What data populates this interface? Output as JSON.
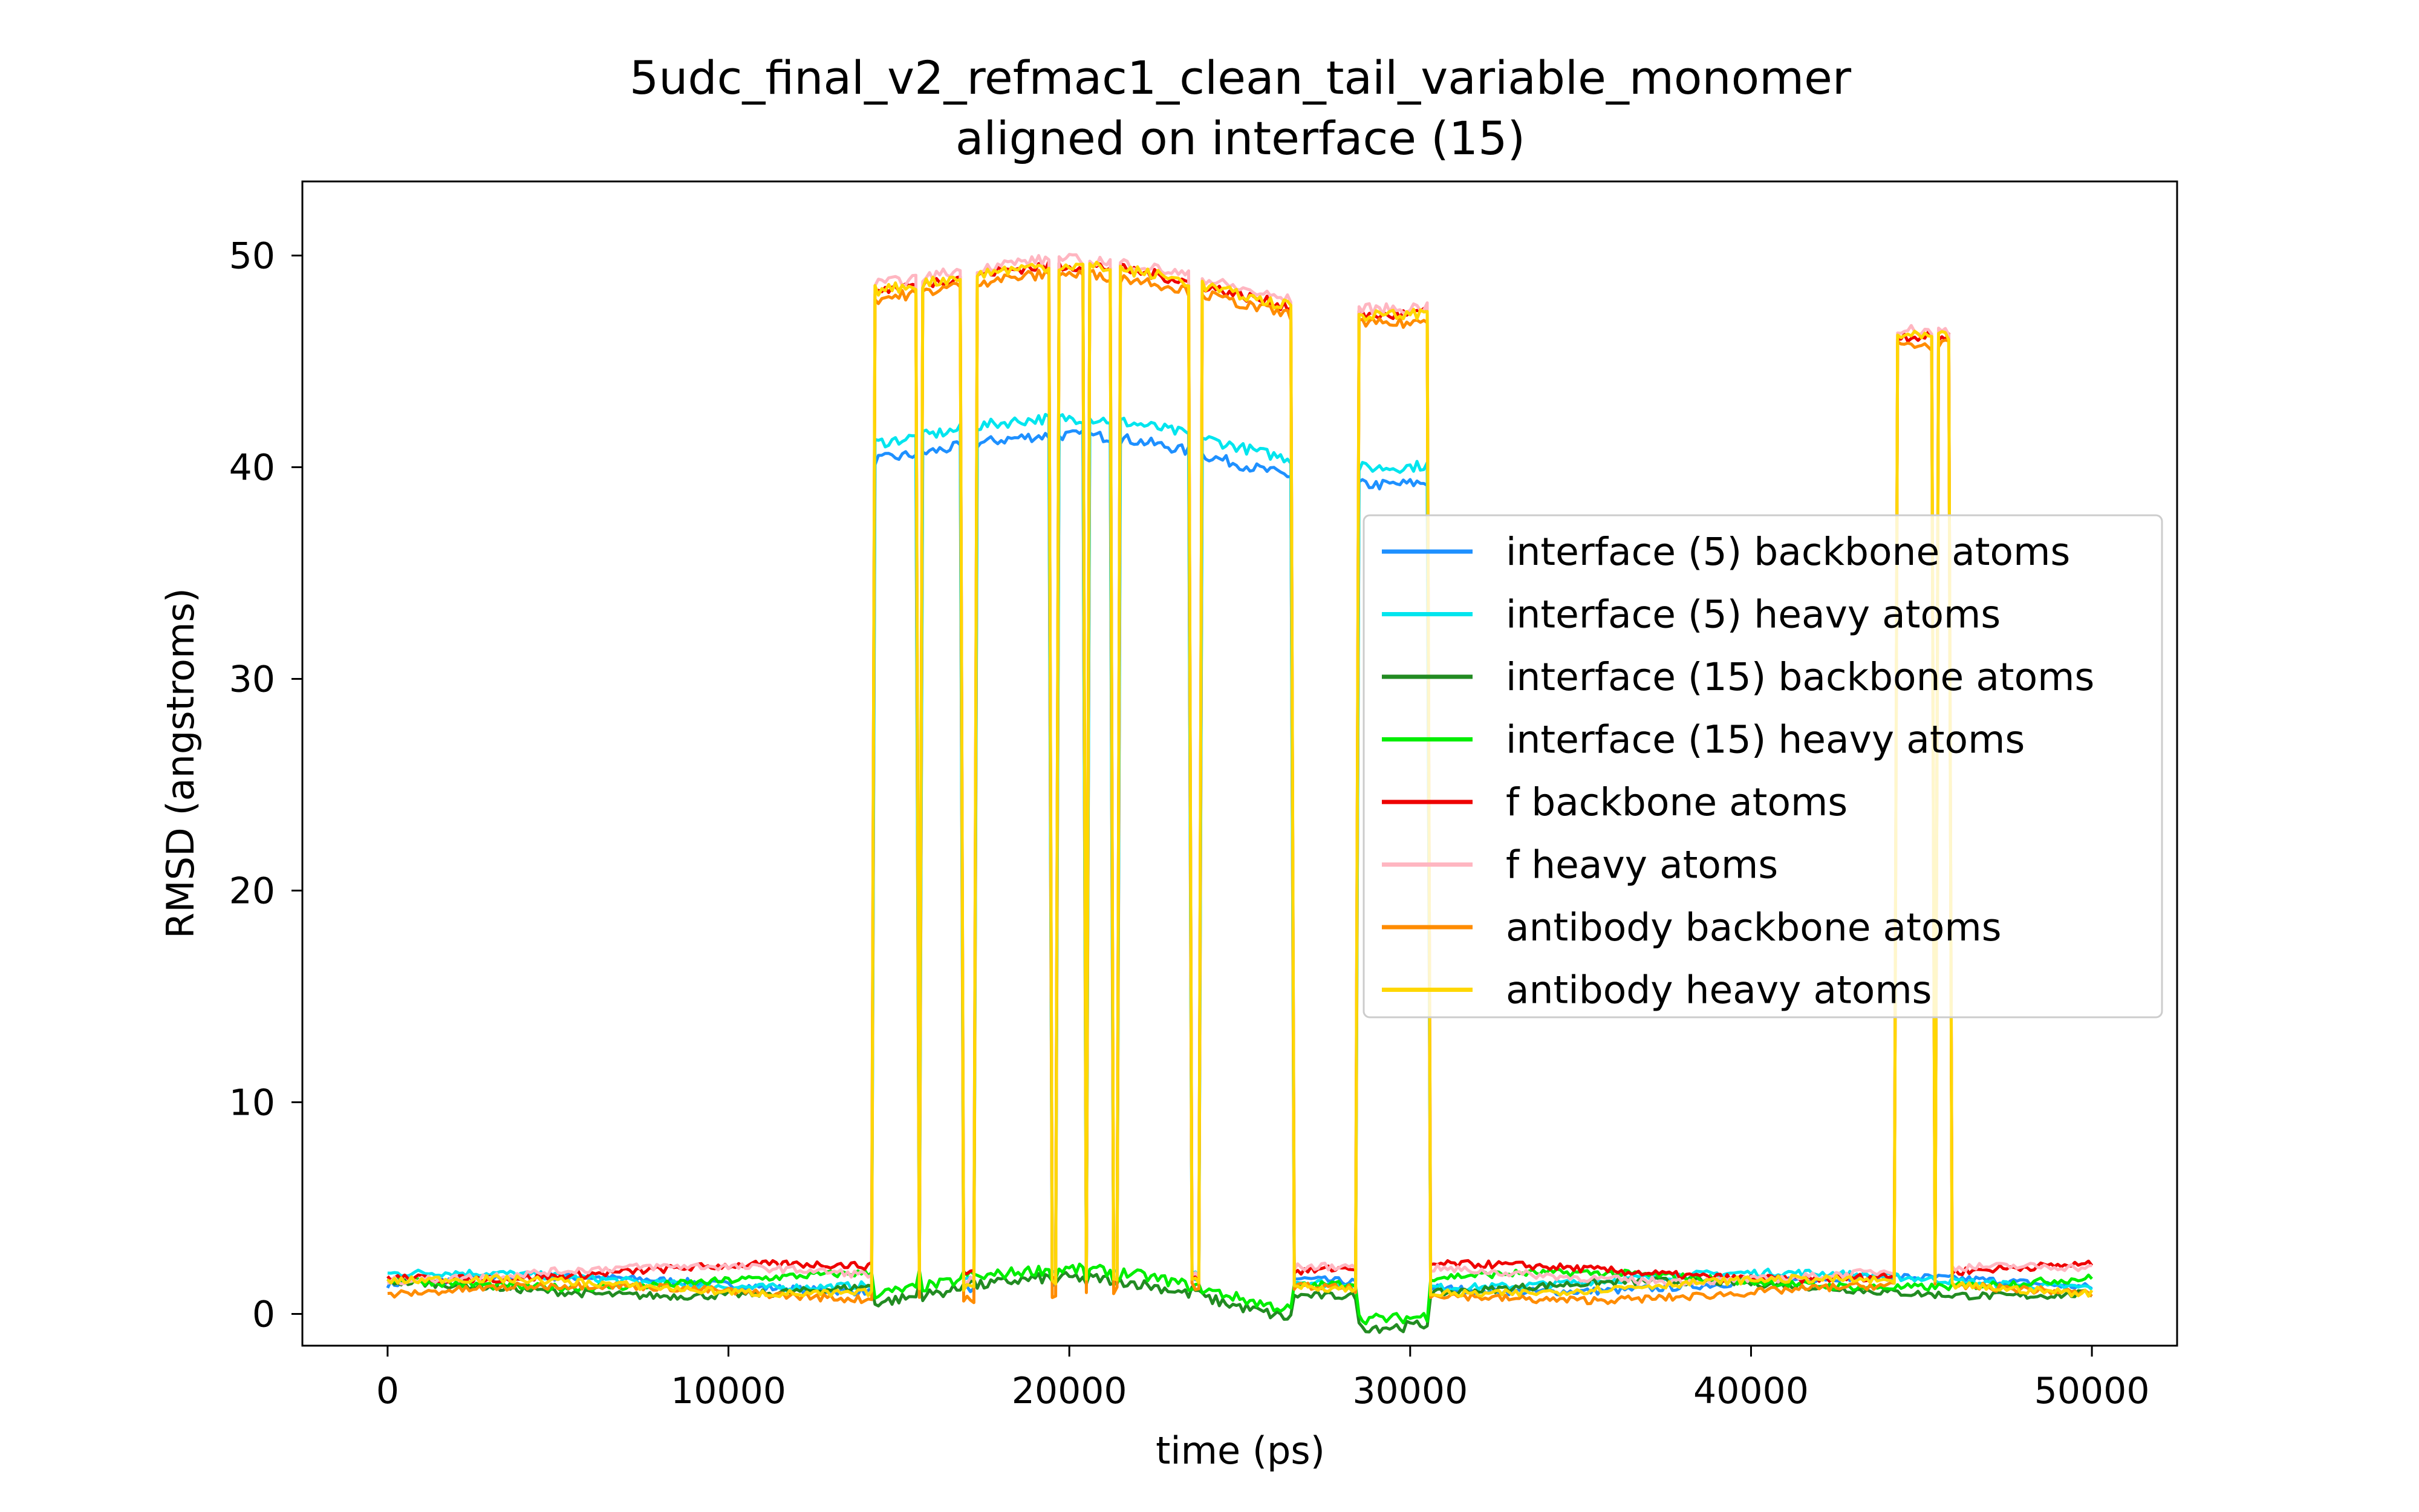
{
  "chart_data": {
    "type": "line",
    "title": "5udc_final_v2_refmac1_clean_tail_variable_monomer",
    "subtitle": "aligned on interface (15)",
    "xlabel": "time (ps)",
    "ylabel": "RMSD (angstroms)",
    "xlim": [
      -2500,
      52500
    ],
    "ylim": [
      -1.5,
      53.5
    ],
    "xticks": [
      0,
      10000,
      20000,
      30000,
      40000,
      50000
    ],
    "yticks": [
      0,
      10,
      20,
      30,
      40,
      50
    ],
    "grid": false,
    "legend_position": "center-right",
    "series": [
      {
        "name": "interface (5) backbone atoms",
        "color": "#1e90ff",
        "low": 1.4,
        "high": 41.0,
        "spikes": false
      },
      {
        "name": "interface (5) heavy atoms",
        "color": "#00e5ee",
        "low": 1.6,
        "high": 41.8,
        "spikes": false
      },
      {
        "name": "interface (15) backbone atoms",
        "color": "#228b22",
        "low": 1.2,
        "high": 1.2,
        "spikes": false
      },
      {
        "name": "interface (15) heavy atoms",
        "color": "#00ee00",
        "low": 1.6,
        "high": 1.6,
        "spikes": false
      },
      {
        "name": "f backbone atoms",
        "color": "#ee0000",
        "low": 2.0,
        "high": 49.0,
        "spikes": true
      },
      {
        "name": "f heavy atoms",
        "color": "#ffb6c1",
        "low": 1.9,
        "high": 49.3,
        "spikes": true
      },
      {
        "name": "antibody backbone atoms",
        "color": "#ff8c00",
        "low": 1.0,
        "high": 48.6,
        "spikes": true
      },
      {
        "name": "antibody heavy atoms",
        "color": "#ffd700",
        "low": 1.3,
        "high": 49.0,
        "spikes": true
      }
    ],
    "high_segments": [
      [
        14300,
        14900
      ],
      [
        15000,
        15500
      ],
      [
        15700,
        16800
      ],
      [
        17300,
        19400
      ],
      [
        19700,
        20400
      ],
      [
        20600,
        21200
      ],
      [
        21500,
        23500
      ],
      [
        23900,
        26500
      ],
      [
        28500,
        30500
      ]
    ],
    "late_spikes": [
      [
        44300,
        44600
      ],
      [
        44700,
        44900
      ],
      [
        45000,
        45300
      ],
      [
        45500,
        45800
      ]
    ]
  }
}
